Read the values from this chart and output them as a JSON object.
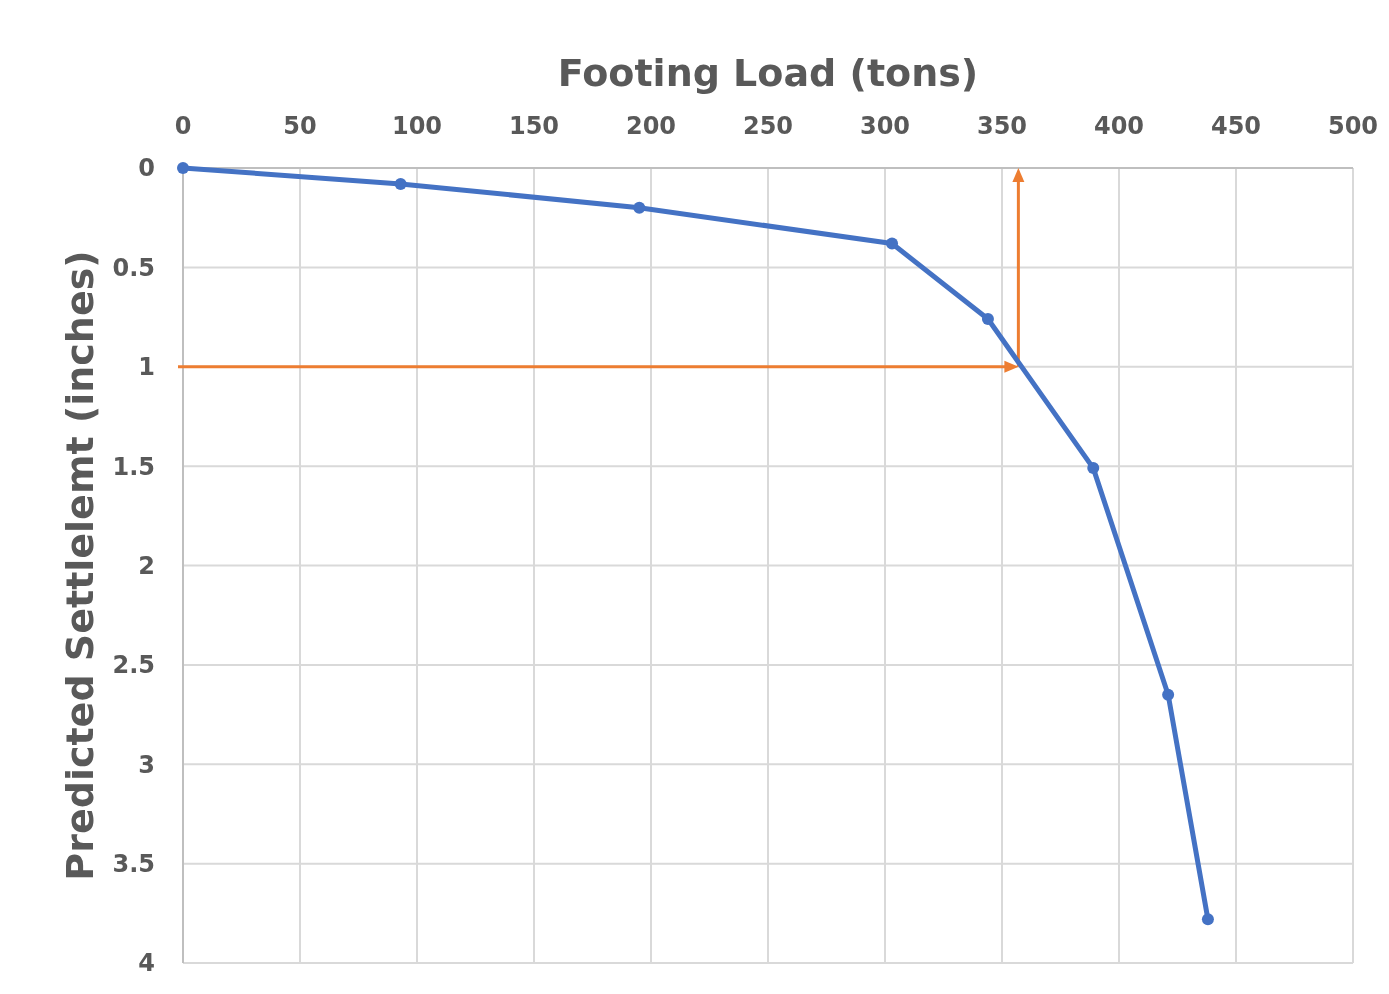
{
  "chart_data": {
    "type": "line",
    "xlabel": "Footing Load (tons)",
    "ylabel": "Predicted Settlelemt (inches)",
    "x": [
      0,
      93,
      195,
      303,
      344,
      389,
      421,
      438
    ],
    "series": [
      {
        "color": "#4472c4",
        "values": [
          0,
          0.08,
          0.2,
          0.38,
          0.76,
          1.51,
          2.65,
          3.78
        ]
      }
    ],
    "xlim": [
      0,
      500
    ],
    "xticks": [
      0,
      50,
      100,
      150,
      200,
      250,
      300,
      350,
      400,
      450,
      500
    ],
    "ylim": [
      4,
      0
    ],
    "yticks": [
      0,
      0.5,
      1,
      1.5,
      2,
      2.5,
      3,
      3.5,
      4
    ],
    "grid": true,
    "marker": "circle",
    "line_style": "solid",
    "ref_lines": [
      {
        "axis": "y",
        "value": 1,
        "color": "#ed7d31"
      },
      {
        "axis": "x",
        "value": 357,
        "color": "#ed7d31"
      }
    ]
  }
}
